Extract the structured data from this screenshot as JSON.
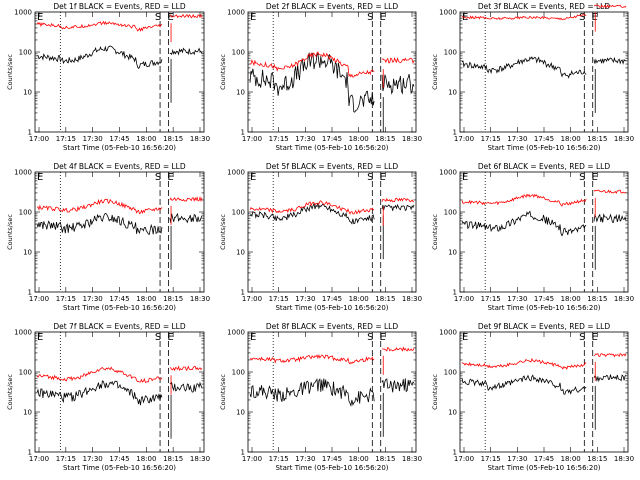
{
  "chart_data": [
    {
      "type": "line",
      "title": "Det 1f BLACK = Events, RED = LLD",
      "xlabel": "Start Time (05-Feb-10 16:56:20)",
      "ylabel": "Counts/sec",
      "ylog": true,
      "ylim": [
        1,
        1000
      ],
      "xticks": [
        "17:00",
        "17:15",
        "17:30",
        "17:45",
        "18:00",
        "18:15",
        "18:30"
      ],
      "yticks": [
        "1",
        "10",
        "100",
        "1000"
      ],
      "annotations": [
        "E",
        "S",
        "E"
      ],
      "series": [
        {
          "name": "BLACK = Events",
          "color": "#000000",
          "base": 80,
          "amp": 2.3,
          "floor": 45,
          "noise": 0.08
        },
        {
          "name": "RED = LLD",
          "color": "#ff0000",
          "base": 500,
          "amp": 1.4,
          "floor": 350,
          "noise": 0.04
        }
      ]
    },
    {
      "type": "line",
      "title": "Det 2f BLACK = Events, RED = LLD",
      "xlabel": "Start Time (05-Feb-10 16:56:20)",
      "ylabel": "Counts/sec",
      "ylog": true,
      "ylim": [
        1,
        1000
      ],
      "xticks": [
        "17:00",
        "17:15",
        "17:30",
        "17:45",
        "18:00",
        "18:15",
        "18:30"
      ],
      "yticks": [
        "1",
        "10",
        "100",
        "1000"
      ],
      "annotations": [
        "E",
        "S",
        "E"
      ],
      "series": [
        {
          "name": "BLACK = Events",
          "color": "#000000",
          "base": 25,
          "amp": 4.5,
          "floor": 5,
          "noise": 0.25
        },
        {
          "name": "RED = LLD",
          "color": "#ff0000",
          "base": 55,
          "amp": 2.6,
          "floor": 25,
          "noise": 0.06
        }
      ]
    },
    {
      "type": "line",
      "title": "Det 3f BLACK = Events, RED = LLD",
      "xlabel": "Start Time (05-Feb-10 16:56:20)",
      "ylabel": "Counts/sec",
      "ylog": true,
      "ylim": [
        1,
        1000
      ],
      "xticks": [
        "17:00",
        "17:15",
        "17:30",
        "17:45",
        "18:00",
        "18:15",
        "18:30"
      ],
      "yticks": [
        "1",
        "10",
        "100",
        "1000"
      ],
      "annotations": [
        "E",
        "S",
        "E"
      ],
      "series": [
        {
          "name": "BLACK = Events",
          "color": "#000000",
          "base": 50,
          "amp": 2.0,
          "floor": 25,
          "noise": 0.08
        },
        {
          "name": "RED = LLD",
          "color": "#ff0000",
          "base": 750,
          "amp": 1.1,
          "floor": 650,
          "noise": 0.03
        }
      ]
    },
    {
      "type": "line",
      "title": "Det 4f BLACK = Events, RED = LLD",
      "xlabel": "Start Time (05-Feb-10 16:56:20)",
      "ylabel": "Counts/sec",
      "ylog": true,
      "ylim": [
        1,
        1000
      ],
      "xticks": [
        "17:00",
        "17:15",
        "17:30",
        "17:45",
        "18:00",
        "18:15",
        "18:30"
      ],
      "yticks": [
        "1",
        "10",
        "100",
        "1000"
      ],
      "annotations": [
        "E",
        "S",
        "E"
      ],
      "series": [
        {
          "name": "BLACK = Events",
          "color": "#000000",
          "base": 50,
          "amp": 2.2,
          "floor": 30,
          "noise": 0.12
        },
        {
          "name": "RED = LLD",
          "color": "#ff0000",
          "base": 130,
          "amp": 2.0,
          "floor": 95,
          "noise": 0.05
        }
      ]
    },
    {
      "type": "line",
      "title": "Det 5f BLACK = Events, RED = LLD",
      "xlabel": "Start Time (05-Feb-10 16:56:20)",
      "ylabel": "Counts/sec",
      "ylog": true,
      "ylim": [
        1,
        1000
      ],
      "xticks": [
        "17:00",
        "17:15",
        "17:30",
        "17:45",
        "18:00",
        "18:15",
        "18:30"
      ],
      "yticks": [
        "1",
        "10",
        "100",
        "1000"
      ],
      "annotations": [
        "E",
        "S",
        "E"
      ],
      "series": [
        {
          "name": "BLACK = Events",
          "color": "#000000",
          "base": 90,
          "amp": 2.4,
          "floor": 55,
          "noise": 0.08
        },
        {
          "name": "RED = LLD",
          "color": "#ff0000",
          "base": 120,
          "amp": 2.0,
          "floor": 90,
          "noise": 0.05
        }
      ]
    },
    {
      "type": "line",
      "title": "Det 6f BLACK = Events, RED = LLD",
      "xlabel": "Start Time (05-Feb-10 16:56:20)",
      "ylabel": "Counts/sec",
      "ylog": true,
      "ylim": [
        1,
        1000
      ],
      "xticks": [
        "17:00",
        "17:15",
        "17:30",
        "17:45",
        "18:00",
        "18:15",
        "18:30"
      ],
      "yticks": [
        "1",
        "10",
        "100",
        "1000"
      ],
      "annotations": [
        "E",
        "S",
        "E"
      ],
      "series": [
        {
          "name": "BLACK = Events",
          "color": "#000000",
          "base": 50,
          "amp": 2.5,
          "floor": 30,
          "noise": 0.1
        },
        {
          "name": "RED = LLD",
          "color": "#ff0000",
          "base": 180,
          "amp": 1.9,
          "floor": 150,
          "noise": 0.04
        }
      ]
    },
    {
      "type": "line",
      "title": "Det 7f BLACK = Events, RED = LLD",
      "xlabel": "Start Time (05-Feb-10 16:56:20)",
      "ylabel": "Counts/sec",
      "ylog": true,
      "ylim": [
        1,
        1000
      ],
      "xticks": [
        "17:00",
        "17:15",
        "17:30",
        "17:45",
        "18:00",
        "18:15",
        "18:30"
      ],
      "yticks": [
        "1",
        "10",
        "100",
        "1000"
      ],
      "annotations": [
        "E",
        "S",
        "E"
      ],
      "series": [
        {
          "name": "BLACK = Events",
          "color": "#000000",
          "base": 30,
          "amp": 2.6,
          "floor": 18,
          "noise": 0.12
        },
        {
          "name": "RED = LLD",
          "color": "#ff0000",
          "base": 80,
          "amp": 2.2,
          "floor": 55,
          "noise": 0.05
        }
      ]
    },
    {
      "type": "line",
      "title": "Det 8f BLACK = Events, RED = LLD",
      "xlabel": "Start Time (05-Feb-10 16:56:20)",
      "ylabel": "Counts/sec",
      "ylog": true,
      "ylim": [
        1,
        1000
      ],
      "xticks": [
        "17:00",
        "17:15",
        "17:30",
        "17:45",
        "18:00",
        "18:15",
        "18:30"
      ],
      "yticks": [
        "1",
        "10",
        "100",
        "1000"
      ],
      "annotations": [
        "E",
        "S",
        "E"
      ],
      "series": [
        {
          "name": "BLACK = Events",
          "color": "#000000",
          "base": 35,
          "amp": 2.0,
          "floor": 20,
          "noise": 0.18
        },
        {
          "name": "RED = LLD",
          "color": "#ff0000",
          "base": 220,
          "amp": 1.4,
          "floor": 170,
          "noise": 0.05
        }
      ]
    },
    {
      "type": "line",
      "title": "Det 9f BLACK = Events, RED = LLD",
      "xlabel": "Start Time (05-Feb-10 16:56:20)",
      "ylabel": "Counts/sec",
      "ylog": true,
      "ylim": [
        1,
        1000
      ],
      "xticks": [
        "17:00",
        "17:15",
        "17:30",
        "17:45",
        "18:00",
        "18:15",
        "18:30"
      ],
      "yticks": [
        "1",
        "10",
        "100",
        "1000"
      ],
      "annotations": [
        "E",
        "S",
        "E"
      ],
      "series": [
        {
          "name": "BLACK = Events",
          "color": "#000000",
          "base": 60,
          "amp": 1.8,
          "floor": 30,
          "noise": 0.08
        },
        {
          "name": "RED = LLD",
          "color": "#ff0000",
          "base": 160,
          "amp": 1.6,
          "floor": 120,
          "noise": 0.04
        }
      ]
    }
  ]
}
